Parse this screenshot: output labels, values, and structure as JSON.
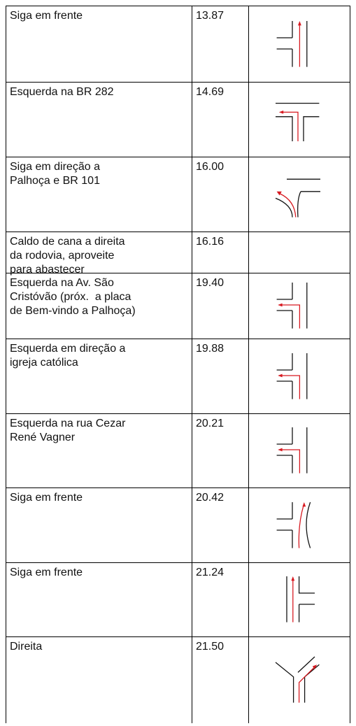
{
  "table": {
    "rows": [
      {
        "text": [
          "Siga em frente"
        ],
        "km": "13.87"
      },
      {
        "text": [
          "Esquerda na BR 282"
        ],
        "km": "14.69"
      },
      {
        "text": [
          "Siga em direção a",
          "Palhoça e BR 101"
        ],
        "km": "16.00"
      },
      {
        "text": [
          "Caldo de cana a direita",
          "da rodovia, aproveite",
          "para abastecer"
        ],
        "km": "16.16"
      },
      {
        "text": [
          "Esquerda na Av. São",
          "Cristóvão (próx.  a placa",
          "de Bem-vindo a Palhoça)"
        ],
        "km": "19.40"
      },
      {
        "text": [
          "Esquerda em direção a",
          "igreja católica"
        ],
        "km": "19.88"
      },
      {
        "text": [
          "Esquerda na rua Cezar",
          "René Vagner"
        ],
        "km": "20.21"
      },
      {
        "text": [
          "Siga em frente"
        ],
        "km": "20.42"
      },
      {
        "text": [
          "Siga em frente"
        ],
        "km": "21.24"
      },
      {
        "text": [
          "Direita"
        ],
        "km": "21.50"
      }
    ]
  }
}
